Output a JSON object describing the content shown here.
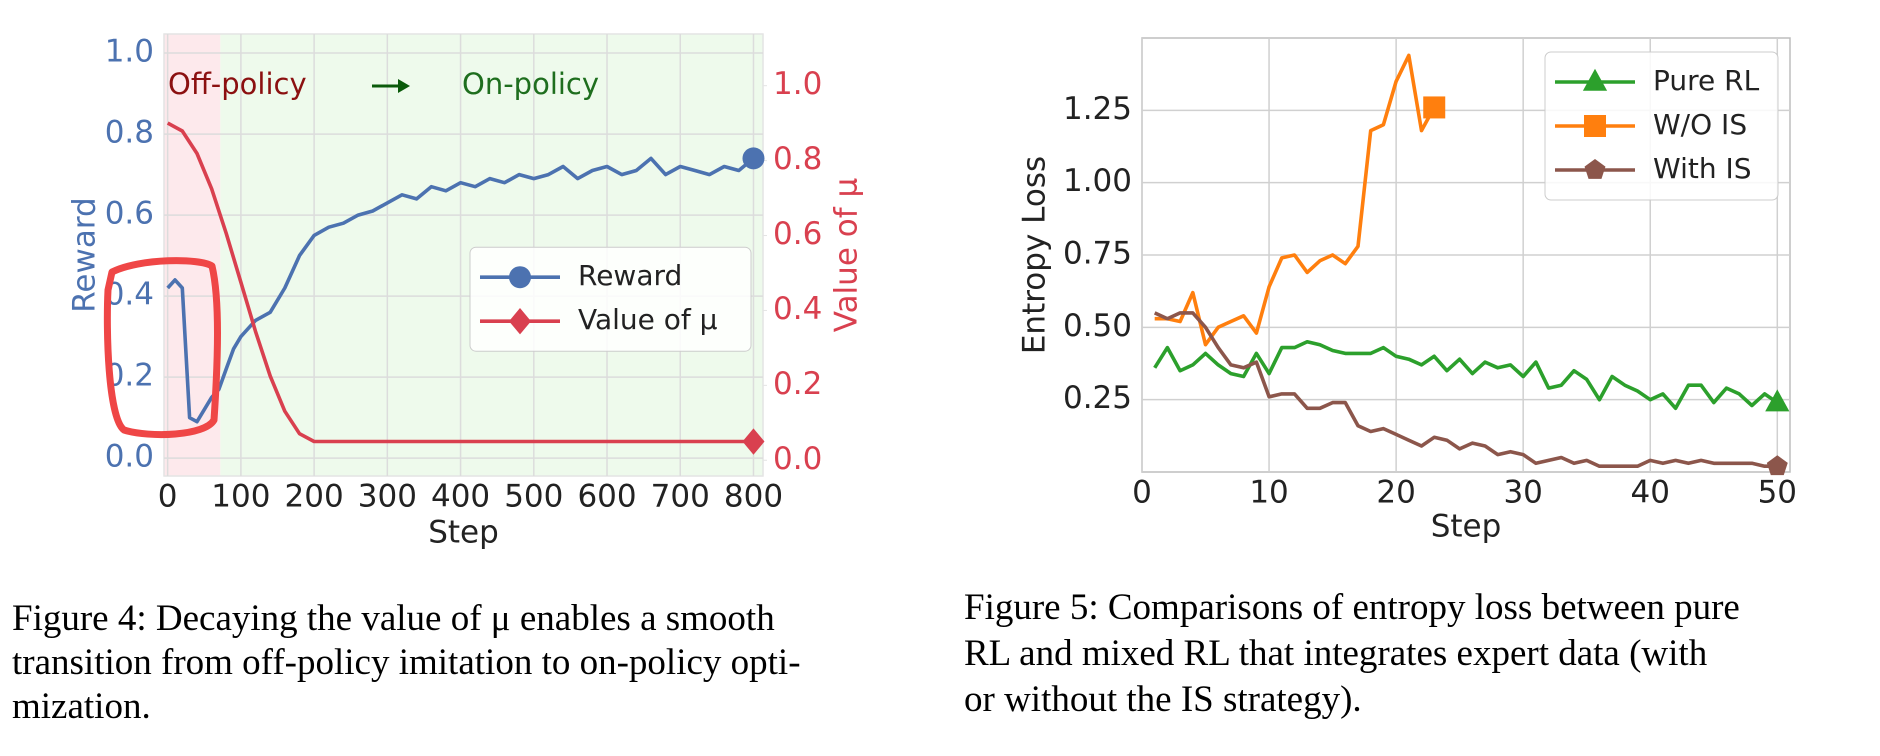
{
  "chart_data": [
    {
      "type": "line",
      "xlabel": "Step",
      "ylabel": "Reward",
      "y2label": "Value of μ",
      "ylabel_color": "#4c72b0",
      "y2label_color": "#d9404f",
      "xlim": [
        -5,
        813
      ],
      "ylim": [
        -0.044,
        1.047
      ],
      "y2lim": [
        -0.042,
        1.138
      ],
      "xticks": [
        0,
        100,
        200,
        300,
        400,
        500,
        600,
        700,
        800
      ],
      "yticks": [
        {
          "value": 0,
          "label": "0.0"
        },
        {
          "value": 0.2,
          "label": "0.2"
        },
        {
          "value": 0.4,
          "label": "0.4"
        },
        {
          "value": 0.6,
          "label": "0.6"
        },
        {
          "value": 0.8,
          "label": "0.8"
        },
        {
          "value": 1,
          "label": "1.0"
        }
      ],
      "y2ticks": [
        {
          "value": 0,
          "label": "0.0"
        },
        {
          "value": 0.2,
          "label": "0.2"
        },
        {
          "value": 0.4,
          "label": "0.4"
        },
        {
          "value": 0.6,
          "label": "0.6"
        },
        {
          "value": 0.8,
          "label": "0.8"
        },
        {
          "value": 1,
          "label": "1.0"
        }
      ],
      "grid": true,
      "legend_loc": "center right",
      "regions": [
        {
          "label": "Off-policy",
          "span": [
            -5,
            72
          ],
          "color": "#fde9ec",
          "label_color": "#8b1010"
        },
        {
          "label": "On-policy",
          "span": [
            72,
            813
          ],
          "color": "#eefaec",
          "label_color": "#1e6e1e"
        }
      ],
      "series": [
        {
          "name": "Reward",
          "color": "#4c72b0",
          "marker": "circle",
          "x": [
            0,
            10,
            20,
            30,
            40,
            50,
            60,
            70,
            80,
            90,
            100,
            120,
            140,
            160,
            180,
            200,
            220,
            240,
            260,
            280,
            300,
            320,
            340,
            360,
            380,
            400,
            420,
            440,
            460,
            480,
            500,
            520,
            540,
            560,
            580,
            600,
            620,
            640,
            660,
            680,
            700,
            720,
            740,
            760,
            780,
            800
          ],
          "values": [
            0.42,
            0.44,
            0.42,
            0.1,
            0.09,
            0.12,
            0.15,
            0.17,
            0.22,
            0.27,
            0.3,
            0.34,
            0.36,
            0.42,
            0.5,
            0.55,
            0.57,
            0.58,
            0.6,
            0.61,
            0.63,
            0.65,
            0.64,
            0.67,
            0.66,
            0.68,
            0.67,
            0.69,
            0.68,
            0.7,
            0.69,
            0.7,
            0.72,
            0.69,
            0.71,
            0.72,
            0.7,
            0.71,
            0.74,
            0.7,
            0.72,
            0.71,
            0.7,
            0.72,
            0.71,
            0.74
          ]
        },
        {
          "name": "Value of μ",
          "color": "#d9404f",
          "marker": "diamond",
          "axis": "y2",
          "x": [
            0,
            20,
            40,
            60,
            80,
            100,
            120,
            140,
            160,
            180,
            200,
            800
          ],
          "values": [
            0.9,
            0.879,
            0.819,
            0.725,
            0.606,
            0.475,
            0.344,
            0.225,
            0.131,
            0.071,
            0.05,
            0.05
          ]
        }
      ]
    },
    {
      "type": "line",
      "xlabel": "Step",
      "ylabel": "Entropy Loss",
      "xlim": [
        0,
        51
      ],
      "ylim": [
        0,
        1.5
      ],
      "xticks": [
        0,
        10,
        20,
        30,
        40,
        50
      ],
      "yticks": [
        0.25,
        {
          "value": 0.5,
          "label": "0.50"
        },
        0.75,
        {
          "value": 1,
          "label": "1.00"
        },
        1.25
      ],
      "grid": true,
      "legend_loc": "upper right",
      "x": [
        1,
        2,
        3,
        4,
        5,
        6,
        7,
        8,
        9,
        10,
        11,
        12,
        13,
        14,
        15,
        16,
        17,
        18,
        19,
        20,
        21,
        22,
        23,
        24,
        25,
        26,
        27,
        28,
        29,
        30,
        31,
        32,
        33,
        34,
        35,
        36,
        37,
        38,
        39,
        40,
        41,
        42,
        43,
        44,
        45,
        46,
        47,
        48,
        49,
        50
      ],
      "series": [
        {
          "name": "Pure RL",
          "color": "#2ca02c",
          "marker": "triangle",
          "values": [
            0.36,
            0.43,
            0.35,
            0.37,
            0.41,
            0.37,
            0.34,
            0.33,
            0.41,
            0.34,
            0.43,
            0.43,
            0.45,
            0.44,
            0.42,
            0.41,
            0.41,
            0.41,
            0.43,
            0.4,
            0.39,
            0.37,
            0.4,
            0.35,
            0.39,
            0.34,
            0.38,
            0.36,
            0.37,
            0.33,
            0.38,
            0.29,
            0.3,
            0.35,
            0.32,
            0.25,
            0.33,
            0.3,
            0.28,
            0.25,
            0.27,
            0.22,
            0.3,
            0.3,
            0.24,
            0.29,
            0.27,
            0.23,
            0.27,
            0.24
          ]
        },
        {
          "name": "W/O IS",
          "color": "#ff7f0e",
          "marker": "square",
          "values": [
            0.53,
            0.53,
            0.52,
            0.62,
            0.44,
            0.5,
            0.52,
            0.54,
            0.48,
            0.64,
            0.74,
            0.75,
            0.69,
            0.73,
            0.75,
            0.72,
            0.78,
            1.18,
            1.2,
            1.35,
            1.44,
            1.18,
            1.26,
            null,
            null,
            null,
            null,
            null,
            null,
            null,
            null,
            null,
            null,
            null,
            null,
            null,
            null,
            null,
            null,
            null,
            null,
            null,
            null,
            null,
            null,
            null,
            null,
            null,
            null,
            null
          ]
        },
        {
          "name": "With IS",
          "color": "#8c564b",
          "marker": "pentagon",
          "values": [
            0.55,
            0.53,
            0.55,
            0.55,
            0.5,
            0.43,
            0.37,
            0.36,
            0.38,
            0.26,
            0.27,
            0.27,
            0.22,
            0.22,
            0.24,
            0.24,
            0.16,
            0.14,
            0.15,
            0.13,
            0.11,
            0.09,
            0.12,
            0.11,
            0.08,
            0.1,
            0.09,
            0.06,
            0.07,
            0.06,
            0.03,
            0.04,
            0.05,
            0.03,
            0.04,
            0.02,
            0.02,
            0.02,
            0.02,
            0.04,
            0.03,
            0.04,
            0.03,
            0.04,
            0.03,
            0.03,
            0.03,
            0.03,
            0.02,
            0.02
          ]
        }
      ]
    }
  ],
  "captions": [
    {
      "lines": [
        "Figure 4: Decaying the value of μ enables a smooth",
        "transition from off-policy imitation to on-policy opti-",
        "mization."
      ]
    },
    {
      "lines": [
        "Figure 5: Comparisons of entropy loss between pure",
        "RL and mixed RL that integrates expert data (with",
        "or without the IS strategy)."
      ]
    }
  ]
}
